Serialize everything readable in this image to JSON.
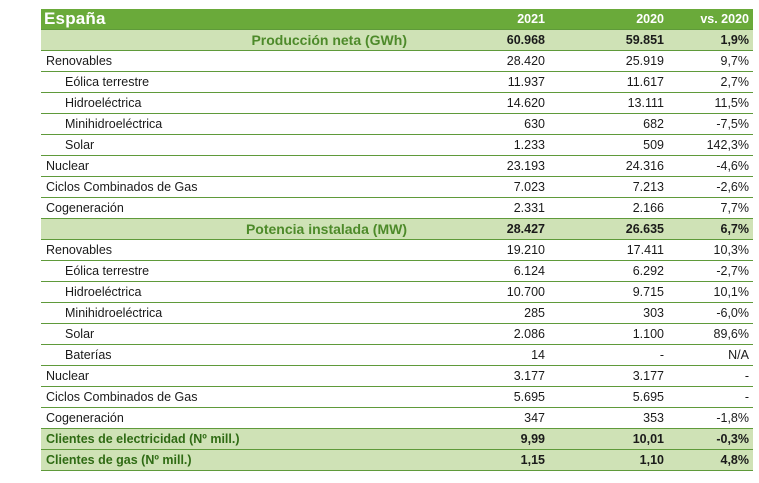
{
  "table": {
    "title": "España",
    "col_2021": "2021",
    "col_2020": "2020",
    "col_vs": "vs. 2020",
    "produccion": {
      "label": "Producción neta (GWh)",
      "v2021": "60.968",
      "v2020": "59.851",
      "vs": "1,9%",
      "rows": [
        {
          "label": "Renovables",
          "v2021": "28.420",
          "v2020": "25.919",
          "vs": "9,7%"
        },
        {
          "label": "Eólica terrestre",
          "v2021": "11.937",
          "v2020": "11.617",
          "vs": "2,7%"
        },
        {
          "label": "Hidroeléctrica",
          "v2021": "14.620",
          "v2020": "13.111",
          "vs": "11,5%"
        },
        {
          "label": "Minihidroeléctrica",
          "v2021": "630",
          "v2020": "682",
          "vs": "-7,5%"
        },
        {
          "label": "Solar",
          "v2021": "1.233",
          "v2020": "509",
          "vs": "142,3%"
        },
        {
          "label": "Nuclear",
          "v2021": "23.193",
          "v2020": "24.316",
          "vs": "-4,6%"
        },
        {
          "label": "Ciclos Combinados de Gas",
          "v2021": "7.023",
          "v2020": "7.213",
          "vs": "-2,6%"
        },
        {
          "label": "Cogeneración",
          "v2021": "2.331",
          "v2020": "2.166",
          "vs": "7,7%"
        }
      ]
    },
    "potencia": {
      "label": "Potencia instalada (MW)",
      "v2021": "28.427",
      "v2020": "26.635",
      "vs": "6,7%",
      "rows": [
        {
          "label": "Renovables",
          "v2021": "19.210",
          "v2020": "17.411",
          "vs": "10,3%"
        },
        {
          "label": "Eólica terrestre",
          "v2021": "6.124",
          "v2020": "6.292",
          "vs": "-2,7%"
        },
        {
          "label": "Hidroeléctrica",
          "v2021": "10.700",
          "v2020": "9.715",
          "vs": "10,1%"
        },
        {
          "label": "Minihidroeléctrica",
          "v2021": "285",
          "v2020": "303",
          "vs": "-6,0%"
        },
        {
          "label": "Solar",
          "v2021": "2.086",
          "v2020": "1.100",
          "vs": "89,6%"
        },
        {
          "label": "Baterías",
          "v2021": "14",
          "v2020": "-",
          "vs": "N/A"
        },
        {
          "label": "Nuclear",
          "v2021": "3.177",
          "v2020": "3.177",
          "vs": "-"
        },
        {
          "label": "Ciclos Combinados de Gas",
          "v2021": "5.695",
          "v2020": "5.695",
          "vs": "-"
        },
        {
          "label": "Cogeneración",
          "v2021": "347",
          "v2020": "353",
          "vs": "-1,8%"
        }
      ]
    },
    "clientes_electricidad": {
      "label": "Clientes de electricidad (Nº mill.)",
      "v2021": "9,99",
      "v2020": "10,01",
      "vs": "-0,3%"
    },
    "clientes_gas": {
      "label": "Clientes de gas (Nº mill.)",
      "v2021": "1,15",
      "v2020": "1,10",
      "vs": "4,8%"
    }
  }
}
